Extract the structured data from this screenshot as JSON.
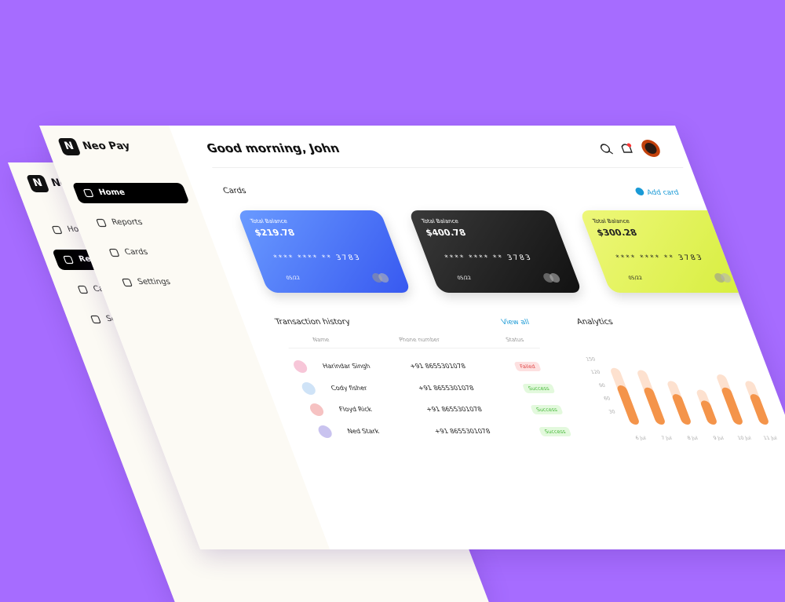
{
  "sidebar": {
    "logo": "N",
    "brand": "Neo Pay",
    "nav": [
      "Home",
      "Reports",
      "Cards",
      "Settings"
    ]
  },
  "header": {
    "greeting": "Good morning, John"
  },
  "cards_section": {
    "title": "Cards",
    "add_label": "Add card",
    "cards": [
      {
        "label": "Total Balance",
        "balance": "$219.78",
        "number": "**** **** ** 3783",
        "expiry": "05/22"
      },
      {
        "label": "Total Balance",
        "balance": "$400.78",
        "number": "**** **** ** 3783",
        "expiry": "05/22"
      },
      {
        "label": "Total Balance",
        "balance": "$300.28",
        "number": "**** **** ** 3783",
        "expiry": "05/22"
      }
    ]
  },
  "transactions": {
    "title": "Transaction history",
    "view_all": "View all",
    "columns": [
      "Name",
      "Phone number",
      "Status"
    ],
    "rows": [
      {
        "name": "Harindar Singh",
        "phone": "+91 8655301078",
        "status": "Failed",
        "badge_color": "#e04848",
        "badge_bg": "#fde0e0"
      },
      {
        "name": "Cody fisher",
        "phone": "+91 8655301078",
        "status": "Success",
        "badge_color": "#46b83a",
        "badge_bg": "#e3f9dd"
      },
      {
        "name": "Floyd Rick",
        "phone": "+91 8655301078",
        "status": "Success",
        "badge_color": "#46b83a",
        "badge_bg": "#e3f9dd"
      },
      {
        "name": "Ned Stark",
        "phone": "+91 8655301078",
        "status": "Success",
        "badge_color": "#46b83a",
        "badge_bg": "#e3f9dd"
      }
    ]
  },
  "chart_data": {
    "type": "bar",
    "title": "Analytics",
    "categories": [
      "6 Jul",
      "7 Jul",
      "8 Jul",
      "9 Jul",
      "10 Jul",
      "11 Jul"
    ],
    "series": [
      {
        "color": "#fde1cf",
        "values": [
          130,
          125,
          100,
          80,
          115,
          100
        ]
      },
      {
        "color": "#f4944a",
        "values": [
          90,
          85,
          70,
          55,
          85,
          70
        ]
      }
    ],
    "ylim": [
      0,
      160
    ],
    "yticks": [
      30,
      60,
      90,
      120,
      150
    ]
  }
}
